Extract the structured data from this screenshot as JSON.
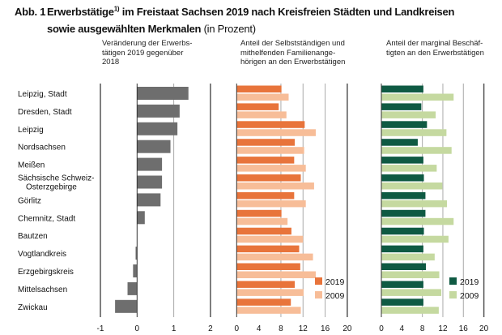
{
  "title": {
    "prefix": "Abb. 1",
    "main": "Erwerbstätige",
    "footnote": "1)",
    "rest": " im Freistaat Sachsen 2019 nach Kreisfreien Städten und Landkreisen",
    "line2": "sowie ausgewählten Merkmalen",
    "unit": " (in Prozent)"
  },
  "colors": {
    "change": "#6e6e6e",
    "orange2019": "#e8743b",
    "orange2009": "#f7bd98",
    "green2019": "#0f5a43",
    "green2009": "#c5d9a0"
  },
  "chart_data": [
    {
      "type": "bar",
      "orientation": "horizontal",
      "title": "Veränderung der Erwerbstätigen 2019 gegenüber 2018",
      "title_lines": [
        "Veränderung der Erwerbs-",
        "tätigen 2019 gegenüber",
        "2018"
      ],
      "categories": [
        "Leipzig, Stadt",
        "Dresden, Stadt",
        "Leipzig",
        "Nordsachsen",
        "Meißen",
        "Sächsische Schweiz-Osterzgebirge",
        "Görlitz",
        "Chemnitz, Stadt",
        "Bautzen",
        "Vogtlandkreis",
        "Erzgebirgskreis",
        "Mittelsachsen",
        "Zwickau"
      ],
      "values": [
        1.4,
        1.16,
        1.1,
        0.91,
        0.68,
        0.68,
        0.64,
        0.21,
        0.0,
        -0.04,
        -0.11,
        -0.26,
        -0.6
      ],
      "xlim": [
        -1,
        2
      ],
      "xticks": [
        "-1",
        "0",
        "1",
        "2"
      ]
    },
    {
      "type": "bar",
      "orientation": "horizontal",
      "title": "Anteil der Selbstständigen und mithelfenden Familienangehörigen an den Erwerbstätigen",
      "title_lines": [
        "Anteil der Selbstständigen und",
        "mithelfenden Familienange-",
        "hörigen an den Erwerbstätigen"
      ],
      "series": [
        {
          "name": "2019",
          "values": [
            8.1,
            7.6,
            12.3,
            10.5,
            10.4,
            11.6,
            10.4,
            8.1,
            9.9,
            11.3,
            11.5,
            10.5,
            9.8
          ]
        },
        {
          "name": "2009",
          "values": [
            9.4,
            9.0,
            14.3,
            12.2,
            12.5,
            14.0,
            12.5,
            9.2,
            12.0,
            13.8,
            14.3,
            12.1,
            11.6
          ]
        }
      ],
      "xlim": [
        0,
        20
      ],
      "xticks": [
        "0",
        "4",
        "8",
        "12",
        "16",
        "20"
      ],
      "legend": "bottom-right"
    },
    {
      "type": "bar",
      "orientation": "horizontal",
      "title": "Anteil der marginal Beschäftigten an den Erwerbstätigen",
      "title_lines": [
        "Anteil der marginal Beschäf-",
        "tigten an den Erwerbstätigen"
      ],
      "series": [
        {
          "name": "2019",
          "values": [
            8.2,
            7.8,
            8.9,
            7.1,
            8.2,
            8.3,
            8.6,
            8.6,
            8.3,
            8.2,
            8.7,
            8.2,
            8.2
          ]
        },
        {
          "name": "2009",
          "values": [
            14.1,
            10.6,
            12.7,
            13.7,
            10.8,
            11.9,
            12.8,
            14.1,
            13.1,
            10.4,
            11.3,
            11.7,
            11.2
          ]
        }
      ],
      "xlim": [
        0,
        20
      ],
      "xticks": [
        "0",
        "4",
        "8",
        "12",
        "16",
        "20"
      ],
      "legend": "bottom-right"
    }
  ]
}
